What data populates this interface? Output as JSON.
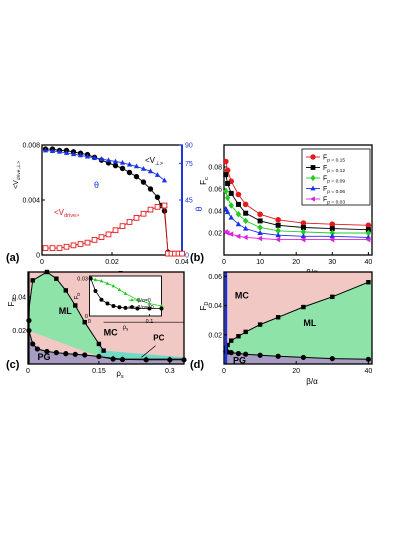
{
  "colors": {
    "red": "#e31a1c",
    "black": "#000000",
    "green": "#22cc22",
    "blue": "#1a33e6",
    "magenta": "#e020e0",
    "pg": "#a89cc2",
    "ml": "#8de3a8",
    "mc": "#f1c8c4",
    "pc": "#72d9c4"
  },
  "chart_data": [
    {
      "panel": "a",
      "label": "(a)",
      "type": "line",
      "xlabel": "F_p",
      "ylabel": "<V_drive,⊥>",
      "ylabel2": "θ",
      "xlim": [
        0,
        0.04
      ],
      "ylim": [
        0,
        0.008
      ],
      "ylim2": [
        0,
        90
      ],
      "xticks": [
        "0",
        "0.02",
        "0.04"
      ],
      "yticks": [
        "0",
        "0.004",
        "0.008"
      ],
      "yticks2": [
        "0",
        "45",
        "75",
        "90"
      ],
      "annotations": [
        "<V_⊥>",
        "<V_drive>",
        "θ"
      ],
      "series": [
        {
          "key": "vperp",
          "axis": "left",
          "color": "#000000",
          "marker": "circle-filled",
          "x": [
            0.001,
            0.003,
            0.005,
            0.007,
            0.009,
            0.011,
            0.013,
            0.015,
            0.017,
            0.019,
            0.021,
            0.023,
            0.025,
            0.027,
            0.029,
            0.031,
            0.033,
            0.034,
            0.035,
            0.036,
            0.037,
            0.038,
            0.039,
            0.04
          ],
          "y": [
            0.0077,
            0.0077,
            0.0076,
            0.0076,
            0.0075,
            0.0074,
            0.0073,
            0.0071,
            0.0069,
            0.0067,
            0.0065,
            0.0063,
            0.006,
            0.0057,
            0.0053,
            0.0048,
            0.0042,
            0.0036,
            0.0032,
            0.0002,
            0.0001,
            0.0001,
            0.0001,
            0.0001
          ]
        },
        {
          "key": "theta",
          "axis": "right",
          "color": "#1a33e6",
          "marker": "triangle-filled",
          "x": [
            0.001,
            0.003,
            0.005,
            0.007,
            0.009,
            0.011,
            0.013,
            0.015,
            0.017,
            0.019,
            0.021,
            0.023,
            0.025,
            0.027,
            0.029,
            0.031,
            0.033,
            0.035
          ],
          "y": [
            85.5,
            85,
            84.5,
            83.5,
            82.5,
            81.5,
            80.5,
            79.5,
            78.5,
            77.5,
            76.5,
            75.5,
            74,
            72.5,
            70.5,
            68.5,
            65.5,
            61
          ]
        },
        {
          "key": "vdrive",
          "axis": "left",
          "color": "#e31a1c",
          "marker": "square-open",
          "x": [
            0.001,
            0.003,
            0.005,
            0.007,
            0.009,
            0.011,
            0.013,
            0.015,
            0.017,
            0.019,
            0.021,
            0.023,
            0.025,
            0.027,
            0.029,
            0.031,
            0.033,
            0.035,
            0.036,
            0.037,
            0.038,
            0.039,
            0.04
          ],
          "y": [
            0.0005,
            0.0005,
            0.0005,
            0.0006,
            0.0007,
            0.0008,
            0.0009,
            0.0011,
            0.0013,
            0.0015,
            0.0018,
            0.0021,
            0.0024,
            0.0027,
            0.003,
            0.0033,
            0.0035,
            0.0036,
            0.0001,
            0.0001,
            0.0001,
            0.0001,
            0.0001
          ]
        }
      ]
    },
    {
      "panel": "b",
      "label": "(b)",
      "type": "line",
      "xlabel": "β/α",
      "ylabel": "F_c",
      "xlim": [
        0,
        41
      ],
      "ylim": [
        0,
        0.1
      ],
      "xticks": [
        "0",
        "10",
        "20",
        "30",
        "40"
      ],
      "yticks": [
        "0.02",
        "0.04",
        "0.06",
        "0.08"
      ],
      "x": [
        0.5,
        1,
        2,
        4,
        6,
        10,
        15,
        22,
        30,
        40
      ],
      "series": [
        {
          "name": "F_p = 0.15",
          "color": "#e31a1c",
          "marker": "circle-filled",
          "values": [
            0.085,
            0.077,
            0.067,
            0.055,
            0.046,
            0.037,
            0.032,
            0.029,
            0.028,
            0.027
          ]
        },
        {
          "name": "F_p = 0.12",
          "color": "#000000",
          "marker": "square-filled",
          "values": [
            0.073,
            0.065,
            0.056,
            0.046,
            0.038,
            0.031,
            0.027,
            0.025,
            0.024,
            0.023
          ]
        },
        {
          "name": "F_p = 0.09",
          "color": "#22cc22",
          "marker": "diamond-filled",
          "values": [
            0.058,
            0.052,
            0.045,
            0.037,
            0.031,
            0.025,
            0.022,
            0.021,
            0.02,
            0.02
          ]
        },
        {
          "name": "F_p = 0.06",
          "color": "#1a33e6",
          "marker": "triangle-filled",
          "values": [
            0.042,
            0.039,
            0.034,
            0.028,
            0.024,
            0.02,
            0.018,
            0.017,
            0.017,
            0.016
          ]
        },
        {
          "name": "F_p = 0.03",
          "color": "#e020e0",
          "marker": "triangle-left-filled",
          "values": [
            0.021,
            0.02,
            0.019,
            0.017,
            0.016,
            0.015,
            0.014,
            0.014,
            0.014,
            0.014
          ]
        }
      ],
      "legend": "top-right"
    },
    {
      "panel": "c",
      "label": "(c)",
      "type": "area",
      "xlabel": "ρ_s",
      "ylabel": "F_D",
      "xlim": [
        0,
        0.33
      ],
      "ylim": [
        0,
        0.055
      ],
      "xticks": [
        "0",
        "0.15",
        "0.3"
      ],
      "yticks": [
        "0.02",
        "0.04"
      ],
      "regions": [
        "PG",
        "ML",
        "MC",
        "PC"
      ],
      "lower_boundary": {
        "x": [
          0.002,
          0.01,
          0.02,
          0.04,
          0.06,
          0.08,
          0.1,
          0.12,
          0.15,
          0.18,
          0.2,
          0.25,
          0.3,
          0.33
        ],
        "y": [
          0.02,
          0.012,
          0.009,
          0.0075,
          0.0068,
          0.0062,
          0.0058,
          0.0054,
          0.0045,
          0.003,
          0.0027,
          0.0025,
          0.0025,
          0.0025
        ]
      },
      "upper_boundary": {
        "x": [
          0.0,
          0.002,
          0.01,
          0.04,
          0.06,
          0.08,
          0.1,
          0.12,
          0.15,
          0.16
        ],
        "y": [
          0.055,
          0.03,
          0.05,
          0.055,
          0.051,
          0.044,
          0.035,
          0.025,
          0.012,
          0.008
        ]
      },
      "pc_boundary": {
        "x": [
          0.15,
          0.18,
          0.2,
          0.25,
          0.3,
          0.33
        ],
        "y": [
          0.0045,
          0.0035,
          0.003,
          0.003,
          0.003,
          0.003
        ]
      },
      "mc_region_top": 0.025,
      "inset": {
        "type": "line",
        "xlabel": "ρ_s",
        "ylabel": "F_D",
        "xlim": [
          0,
          0.12
        ],
        "ylim": [
          0,
          0.032
        ],
        "xticks": [
          "0",
          "0.1"
        ],
        "yticks": [
          "0",
          "0.03"
        ],
        "legend": "bottom-right",
        "series": [
          {
            "name": "β/α=0",
            "color": "#22cc22",
            "marker": "triangle-filled",
            "x": [
              0.002,
              0.01,
              0.02,
              0.03,
              0.04,
              0.05,
              0.06,
              0.08,
              0.1,
              0.12
            ],
            "y": [
              0.03,
              0.029,
              0.028,
              0.026,
              0.024,
              0.021,
              0.018,
              0.013,
              0.01,
              0.008
            ]
          },
          {
            "name": "β/α=10",
            "color": "#000000",
            "marker": "circle-filled",
            "x": [
              0.002,
              0.01,
              0.02,
              0.03,
              0.04,
              0.05,
              0.06,
              0.08,
              0.1,
              0.12
            ],
            "y": [
              0.03,
              0.02,
              0.013,
              0.01,
              0.008,
              0.007,
              0.0065,
              0.006,
              0.006,
              0.006
            ]
          }
        ]
      }
    },
    {
      "panel": "d",
      "label": "(d)",
      "type": "area",
      "xlabel": "β/α",
      "ylabel": "F_D",
      "xlim": [
        0,
        41
      ],
      "ylim": [
        0,
        0.063
      ],
      "xticks": [
        "0",
        "20",
        "40"
      ],
      "yticks": [
        "0.02",
        "0.04",
        "0.06"
      ],
      "regions": [
        "PG",
        "ML",
        "MC"
      ],
      "lower_boundary": {
        "x": [
          0.5,
          1,
          2,
          4,
          6,
          10,
          15,
          22,
          30,
          40
        ],
        "y": [
          0.0085,
          0.0082,
          0.0078,
          0.0072,
          0.0067,
          0.006,
          0.0053,
          0.0045,
          0.0037,
          0.0032
        ]
      },
      "upper_boundary": {
        "x": [
          0.5,
          1,
          2,
          4,
          6,
          10,
          15,
          22,
          30,
          40
        ],
        "y": [
          0.011,
          0.013,
          0.016,
          0.019,
          0.022,
          0.027,
          0.032,
          0.039,
          0.046,
          0.056
        ]
      }
    }
  ]
}
